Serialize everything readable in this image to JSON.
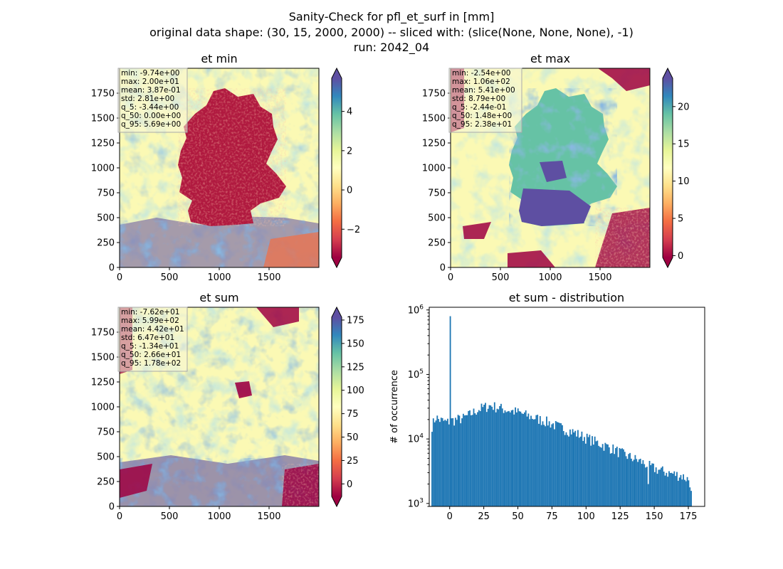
{
  "figure": {
    "title_lines": [
      "Sanity-Check for pfl_et_surf in [mm]",
      "original data shape: (30, 15, 2000, 2000) -- sliced with: (slice(None, None, None), -1)",
      "run: 2042_04"
    ]
  },
  "colormap": {
    "name": "Spectral",
    "stops": [
      "#9e0142",
      "#d53e4f",
      "#f46d43",
      "#fdae61",
      "#fee08b",
      "#ffffbf",
      "#e6f598",
      "#abdda4",
      "#66c2a5",
      "#3288bd",
      "#5e4fa2"
    ]
  },
  "chart_data": [
    {
      "type": "heatmap",
      "title": "et min",
      "xlim": [
        0,
        2000
      ],
      "ylim": [
        0,
        2000
      ],
      "xticks": [
        0,
        500,
        1000,
        1500
      ],
      "yticks": [
        0,
        250,
        500,
        750,
        1000,
        1250,
        1500,
        1750
      ],
      "colorbar": {
        "vmin": -3.44,
        "vmax": 5.69,
        "ticks": [
          -2,
          0,
          2,
          4
        ],
        "tick_labels": [
          "−2",
          "0",
          "2",
          "4"
        ],
        "extend": "both"
      },
      "stats": [
        "min: -9.74e+00",
        "max: 2.00e+01",
        "mean: 3.87e-01",
        "std: 2.81e+00",
        "q_5: -3.44e+00",
        "q_50: 0.00e+00",
        "q_95: 5.69e+00"
      ]
    },
    {
      "type": "heatmap",
      "title": "et max",
      "xlim": [
        0,
        2000
      ],
      "ylim": [
        0,
        2000
      ],
      "xticks": [
        0,
        500,
        1000,
        1500
      ],
      "yticks": [
        0,
        250,
        500,
        750,
        1000,
        1250,
        1500,
        1750
      ],
      "colorbar": {
        "vmin": -0.244,
        "vmax": 23.8,
        "ticks": [
          0,
          5,
          10,
          15,
          20
        ],
        "tick_labels": [
          "0",
          "5",
          "10",
          "15",
          "20"
        ],
        "extend": "both"
      },
      "stats": [
        "min: -2.54e+00",
        "max: 1.06e+02",
        "mean: 5.41e+00",
        "std: 8.79e+00",
        "q_5: -2.44e-01",
        "q_50: 1.48e+00",
        "q_95: 2.38e+01"
      ]
    },
    {
      "type": "heatmap",
      "title": "et sum",
      "xlim": [
        0,
        2000
      ],
      "ylim": [
        0,
        2000
      ],
      "xticks": [
        0,
        500,
        1000,
        1500
      ],
      "yticks": [
        0,
        250,
        500,
        750,
        1000,
        1250,
        1500,
        1750
      ],
      "colorbar": {
        "vmin": -13.4,
        "vmax": 178,
        "ticks": [
          0,
          25,
          50,
          75,
          100,
          125,
          150,
          175
        ],
        "tick_labels": [
          "0",
          "25",
          "50",
          "75",
          "100",
          "125",
          "150",
          "175"
        ],
        "extend": "both"
      },
      "stats": [
        "min: -7.62e+01",
        "max: 5.99e+02",
        "mean: 4.42e+01",
        "std: 6.47e+01",
        "q_5: -1.34e+01",
        "q_50: 2.66e+01",
        "q_95: 1.78e+02"
      ]
    },
    {
      "type": "bar",
      "title": "et sum - distribution",
      "ylabel": "# of occurrence",
      "xlabel": "",
      "yscale": "log",
      "xlim": [
        -15,
        187
      ],
      "ylim": [
        900,
        1100000
      ],
      "xticks": [
        0,
        25,
        50,
        75,
        100,
        125,
        150,
        175
      ],
      "yticks": [
        1000,
        10000,
        100000,
        1000000
      ],
      "ytick_labels": [
        {
          "base": "10",
          "exp": "3"
        },
        {
          "base": "10",
          "exp": "4"
        },
        {
          "base": "10",
          "exp": "5"
        },
        {
          "base": "10",
          "exp": "6"
        }
      ],
      "bin_start": -13.4,
      "bin_end": 177.6,
      "color": "#1f77b4",
      "series": [
        {
          "anchors": [
            [
              -13,
              16000
            ],
            [
              -10,
              22000
            ],
            [
              -8,
              20000
            ],
            [
              -5,
              19000
            ],
            [
              -2,
              18000
            ],
            [
              0,
              19000
            ],
            [
              5,
              20000
            ],
            [
              10,
              21000
            ],
            [
              15,
              24000
            ],
            [
              20,
              28000
            ],
            [
              25,
              31000
            ],
            [
              30,
              33000
            ],
            [
              35,
              31000
            ],
            [
              40,
              29000
            ],
            [
              50,
              26000
            ],
            [
              60,
              22000
            ],
            [
              70,
              19000
            ],
            [
              80,
              15500
            ],
            [
              90,
              13000
            ],
            [
              100,
              10500
            ],
            [
              110,
              8500
            ],
            [
              120,
              7000
            ],
            [
              130,
              5500
            ],
            [
              140,
              4500
            ],
            [
              150,
              3500
            ],
            [
              160,
              3000
            ],
            [
              170,
              2700
            ],
            [
              176,
              2300
            ],
            [
              177.5,
              1200
            ]
          ],
          "spikes": [
            [
              0,
              800000
            ],
            [
              146,
              2000
            ]
          ]
        }
      ]
    }
  ]
}
